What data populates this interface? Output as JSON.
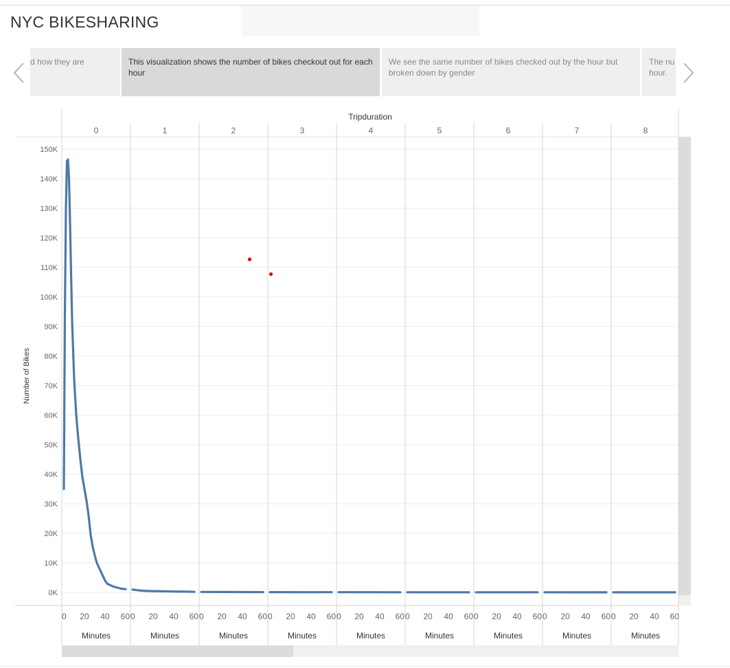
{
  "title": "NYC BIKESHARING",
  "story": {
    "cards": [
      {
        "text": "d how they are"
      },
      {
        "text": "This visualization shows the number of bikes checkout out for each hour"
      },
      {
        "text": "We see the same number of bikes checked out by the hour but broken down by gender"
      },
      {
        "text": "The nu hour."
      }
    ],
    "active_index": 1
  },
  "colors": {
    "line": "#4e79a7",
    "marker": "#e30000",
    "grid": "#ebebeb",
    "divider": "#d4d4d4",
    "text": "#666666"
  },
  "chart_data": {
    "type": "line",
    "column_header_title": "Tripduration",
    "panels": [
      "0",
      "1",
      "2",
      "3",
      "4",
      "5",
      "6",
      "7",
      "8"
    ],
    "xlabel": "Minutes",
    "x_ticks": [
      "0",
      "20",
      "40",
      "60"
    ],
    "xlim": [
      0,
      60
    ],
    "ylabel": "Number of Bikes",
    "ylim": [
      0,
      150000
    ],
    "y_ticks": [
      "0K",
      "10K",
      "20K",
      "30K",
      "40K",
      "50K",
      "60K",
      "70K",
      "80K",
      "90K",
      "100K",
      "110K",
      "120K",
      "130K",
      "140K",
      "150K"
    ],
    "grid": true,
    "series": [
      {
        "panels": [
          {
            "panel": "0",
            "points": [
              [
                0,
                35000
              ],
              [
                1,
                95000
              ],
              [
                2,
                130000
              ],
              [
                3,
                146000
              ],
              [
                4,
                146500
              ],
              [
                5,
                140000
              ],
              [
                6,
                125000
              ],
              [
                7,
                108000
              ],
              [
                8,
                92000
              ],
              [
                10,
                72000
              ],
              [
                12,
                60000
              ],
              [
                14,
                52000
              ],
              [
                16,
                45000
              ],
              [
                18,
                39000
              ],
              [
                20,
                35000
              ],
              [
                22,
                31000
              ],
              [
                24,
                26000
              ],
              [
                26,
                19500
              ],
              [
                28,
                15500
              ],
              [
                30,
                12500
              ],
              [
                32,
                10000
              ],
              [
                34,
                8500
              ],
              [
                36,
                7000
              ],
              [
                38,
                5500
              ],
              [
                40,
                4000
              ],
              [
                42,
                3000
              ],
              [
                44,
                2600
              ],
              [
                46,
                2300
              ],
              [
                48,
                2000
              ],
              [
                50,
                1800
              ],
              [
                52,
                1600
              ],
              [
                55,
                1300
              ],
              [
                60,
                1100
              ]
            ]
          },
          {
            "panel": "1",
            "points": [
              [
                0,
                950
              ],
              [
                5,
                750
              ],
              [
                10,
                550
              ],
              [
                20,
                450
              ],
              [
                30,
                380
              ],
              [
                40,
                300
              ],
              [
                50,
                250
              ],
              [
                60,
                200
              ]
            ]
          },
          {
            "panel": "2",
            "points": [
              [
                0,
                170
              ],
              [
                20,
                150
              ],
              [
                40,
                120
              ],
              [
                60,
                100
              ]
            ]
          },
          {
            "panel": "3",
            "points": [
              [
                0,
                90
              ],
              [
                30,
                80
              ],
              [
                60,
                70
              ]
            ]
          },
          {
            "panel": "4",
            "points": [
              [
                0,
                65
              ],
              [
                30,
                60
              ],
              [
                60,
                55
              ]
            ]
          },
          {
            "panel": "5",
            "points": [
              [
                0,
                50
              ],
              [
                30,
                45
              ],
              [
                60,
                40
              ]
            ]
          },
          {
            "panel": "6",
            "points": [
              [
                0,
                40
              ],
              [
                30,
                38
              ],
              [
                60,
                35
              ]
            ]
          },
          {
            "panel": "7",
            "points": [
              [
                0,
                35
              ],
              [
                30,
                33
              ],
              [
                60,
                30
              ]
            ]
          },
          {
            "panel": "8",
            "points": [
              [
                0,
                30
              ],
              [
                30,
                28
              ],
              [
                60,
                25
              ]
            ]
          }
        ]
      }
    ],
    "annotations": [
      {
        "type": "dot",
        "panel": "2",
        "x": 47,
        "y": 112700
      },
      {
        "type": "dot",
        "panel": "3",
        "x": 1,
        "y": 107700
      }
    ]
  }
}
